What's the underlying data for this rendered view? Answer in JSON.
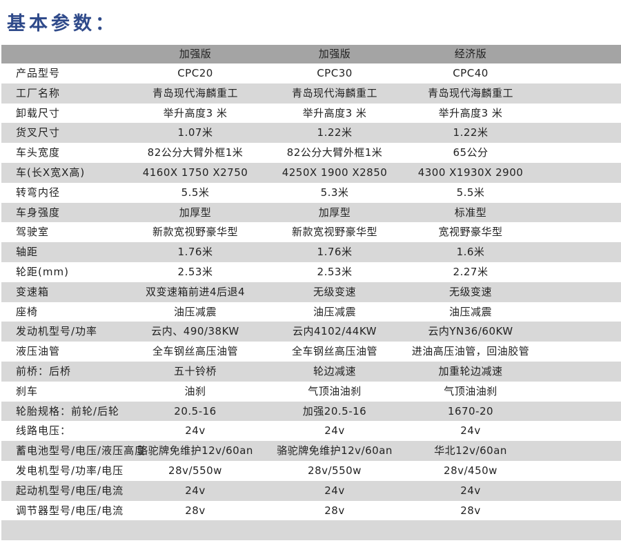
{
  "title": "基本参数：",
  "header": [
    "加强版",
    "加强版",
    "经济版"
  ],
  "rows": [
    {
      "label": "产品型号",
      "values": [
        "CPC20",
        "CPC30",
        "CPC40"
      ]
    },
    {
      "label": "工厂名称",
      "values": [
        "青岛现代海麟重工",
        "青岛现代海麟重工",
        "青岛现代海麟重工"
      ]
    },
    {
      "label": "卸载尺寸",
      "values": [
        "举升高度3 米",
        "举升高度3 米",
        "举升高度3 米"
      ]
    },
    {
      "label": "货叉尺寸",
      "values": [
        "1.07米",
        "1.22米",
        "1.22米"
      ]
    },
    {
      "label": "车头宽度",
      "values": [
        "82公分大臂外框1米",
        "82公分大臂外框1米",
        "65公分"
      ]
    },
    {
      "label": "车(长X宽X高)",
      "values": [
        "4160X 1750 X2750",
        "4250X 1900 X2850",
        "4300 X1930X 2900"
      ]
    },
    {
      "label": "转弯内径",
      "values": [
        "5.5米",
        "5.3米",
        "5.5米"
      ]
    },
    {
      "label": "车身强度",
      "values": [
        "加厚型",
        "加厚型",
        "标准型"
      ]
    },
    {
      "label": "驾驶室",
      "values": [
        "新款宽视野豪华型",
        "新款宽视野豪华型",
        "宽视野豪华型"
      ]
    },
    {
      "label": "轴距",
      "values": [
        "1.76米",
        "1.76米",
        "1.6米"
      ]
    },
    {
      "label": "轮距(mm)",
      "values": [
        "2.53米",
        "2.53米",
        "2.27米"
      ]
    },
    {
      "label": "变速箱",
      "values": [
        "双变速箱前进4后退4",
        "无级变速",
        "无级变速"
      ]
    },
    {
      "label": "座椅",
      "values": [
        "油压减震",
        "油压减震",
        "油压减震"
      ]
    },
    {
      "label": "发动机型号/功率",
      "values": [
        "云内、490/38KW",
        "云内4102/44KW",
        "云内YN36/60KW"
      ]
    },
    {
      "label": "液压油管",
      "values": [
        "全车钢丝高压油管",
        "全车钢丝高压油管",
        "进油高压油管，回油胶管"
      ]
    },
    {
      "label": "前桥：后桥",
      "values": [
        "五十铃桥",
        "轮边减速",
        "加重轮边减速"
      ]
    },
    {
      "label": "刹车",
      "values": [
        "油刹",
        "气顶油油刹",
        "气顶油油刹"
      ]
    },
    {
      "label": "轮胎规格：前轮/后轮",
      "values": [
        "20.5-16",
        "加强20.5-16",
        "1670-20"
      ]
    },
    {
      "label": "线路电压：",
      "values": [
        "24v",
        "24v",
        "24v"
      ]
    },
    {
      "label": "蓄电池型号/电压/液压高度",
      "values": [
        "骆驼牌免维护12v/60an",
        "骆驼牌免维护12v/60an",
        "华北12v/60an"
      ]
    },
    {
      "label": "发电机型号/功率/电压",
      "values": [
        "28v/550w",
        "28v/550w",
        "28v/450w"
      ]
    },
    {
      "label": "起动机型号/电压/电流",
      "values": [
        "24v",
        "24v",
        "24v"
      ]
    },
    {
      "label": "调节器型号/电压/电流",
      "values": [
        "28v",
        "28v",
        "28v"
      ]
    }
  ],
  "colors": {
    "title": "#2f4a8a",
    "header_bg": "#a4a4a4",
    "stripe_bg": "#d8d8d8"
  }
}
